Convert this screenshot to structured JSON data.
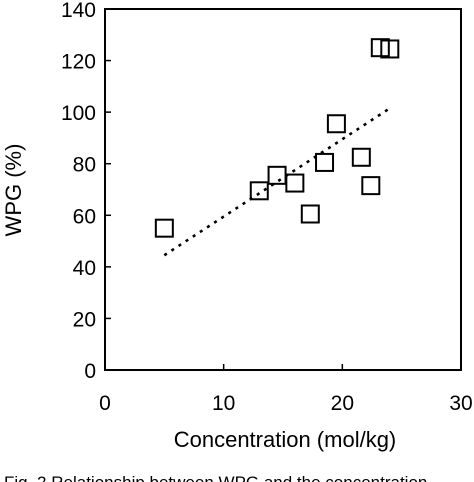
{
  "chart_data": {
    "type": "scatter",
    "xlabel": "Concentration (mol/kg)",
    "ylabel": "WPG (%)",
    "xlim": [
      0,
      30
    ],
    "ylim": [
      0,
      140
    ],
    "x_ticks": [
      0,
      10,
      20,
      30
    ],
    "y_ticks": [
      0,
      20,
      40,
      60,
      80,
      100,
      120,
      140
    ],
    "grid": false,
    "marker": "open-square",
    "points": [
      {
        "x": 5.0,
        "y": 55
      },
      {
        "x": 13.0,
        "y": 69.5
      },
      {
        "x": 14.5,
        "y": 75.5
      },
      {
        "x": 16.0,
        "y": 72.5
      },
      {
        "x": 17.3,
        "y": 60.5
      },
      {
        "x": 18.5,
        "y": 80.5
      },
      {
        "x": 19.5,
        "y": 95.5
      },
      {
        "x": 21.6,
        "y": 82.5
      },
      {
        "x": 22.4,
        "y": 71.5
      },
      {
        "x": 23.2,
        "y": 125
      },
      {
        "x": 24.0,
        "y": 124.5
      }
    ],
    "trendline": {
      "style": "dotted",
      "x": [
        5.0,
        24.0
      ],
      "y": [
        44.5,
        101.5
      ]
    }
  },
  "caption": "Fig. 2   Relationship between WPG and the concentration"
}
